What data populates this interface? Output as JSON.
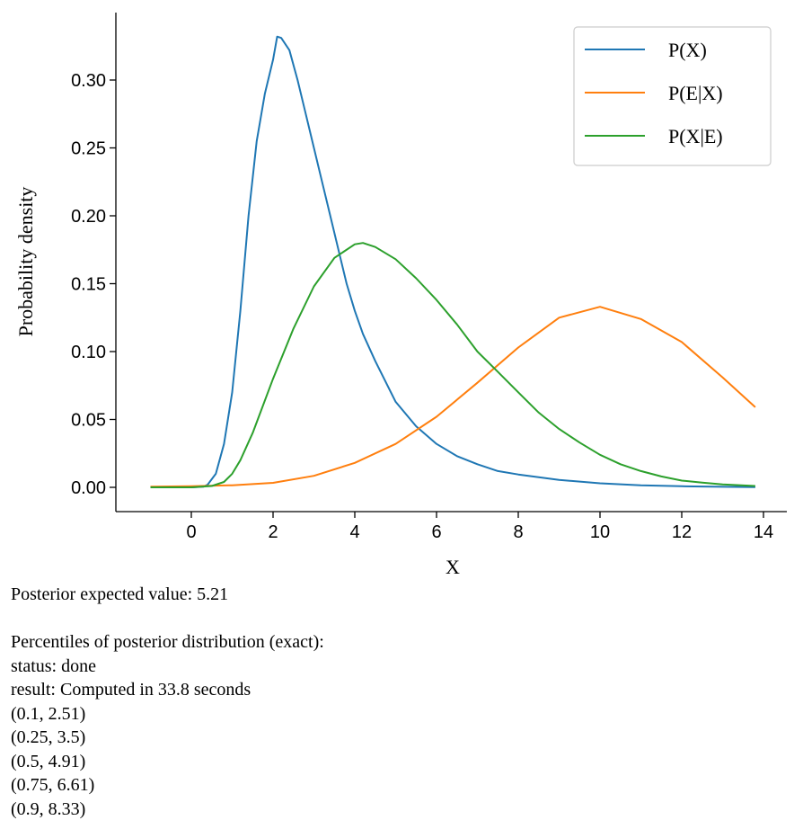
{
  "chart_data": {
    "type": "line",
    "xlabel": "X",
    "ylabel": "Probability density",
    "xlim": [
      -1,
      14
    ],
    "ylim": [
      0,
      0.33
    ],
    "x_ticks": [
      0,
      2,
      4,
      6,
      8,
      10,
      12,
      14
    ],
    "y_ticks": [
      "0.00",
      "0.05",
      "0.10",
      "0.15",
      "0.20",
      "0.25",
      "0.30"
    ],
    "legend_position": "top-right",
    "series": [
      {
        "name": "P(X)",
        "color": "#1f77b4",
        "x": [
          -1,
          0,
          0.3,
          0.4,
          0.6,
          0.8,
          1.0,
          1.2,
          1.4,
          1.6,
          1.8,
          2.0,
          2.1,
          2.2,
          2.4,
          2.6,
          2.8,
          3.0,
          3.2,
          3.4,
          3.6,
          3.8,
          4.0,
          4.2,
          4.5,
          5.0,
          5.5,
          6.0,
          6.5,
          7.0,
          7.5,
          8.0,
          9.0,
          10.0,
          11.0,
          12.0,
          13.0,
          13.8
        ],
        "y": [
          0,
          0,
          0.0005,
          0.002,
          0.01,
          0.032,
          0.07,
          0.13,
          0.2,
          0.255,
          0.29,
          0.315,
          0.332,
          0.331,
          0.322,
          0.3,
          0.275,
          0.25,
          0.225,
          0.2,
          0.175,
          0.15,
          0.13,
          0.113,
          0.093,
          0.063,
          0.045,
          0.032,
          0.023,
          0.017,
          0.012,
          0.0095,
          0.0055,
          0.003,
          0.0015,
          0.0008,
          0.0004,
          0.0002
        ]
      },
      {
        "name": "P(E|X)",
        "color": "#ff7f0e",
        "x": [
          -1,
          0,
          1,
          2,
          3,
          4,
          5,
          6,
          7,
          8,
          9,
          10,
          11,
          12,
          13,
          13.8
        ],
        "y": [
          0.0005,
          0.0008,
          0.0015,
          0.0033,
          0.0085,
          0.018,
          0.032,
          0.052,
          0.077,
          0.103,
          0.125,
          0.133,
          0.124,
          0.107,
          0.081,
          0.059
        ]
      },
      {
        "name": "P(X|E)",
        "color": "#2ca02c",
        "x": [
          -1,
          0,
          0.5,
          0.8,
          1.0,
          1.2,
          1.5,
          2.0,
          2.5,
          3.0,
          3.5,
          4.0,
          4.2,
          4.5,
          5.0,
          5.5,
          6.0,
          6.5,
          7.0,
          7.5,
          8.0,
          8.5,
          9.0,
          9.5,
          10.0,
          10.5,
          11.0,
          11.5,
          12.0,
          12.5,
          13.0,
          13.8
        ],
        "y": [
          0,
          0,
          0.001,
          0.004,
          0.01,
          0.02,
          0.04,
          0.08,
          0.117,
          0.148,
          0.169,
          0.179,
          0.18,
          0.177,
          0.168,
          0.154,
          0.138,
          0.12,
          0.1,
          0.085,
          0.07,
          0.055,
          0.043,
          0.033,
          0.024,
          0.017,
          0.012,
          0.008,
          0.005,
          0.0035,
          0.0022,
          0.001
        ]
      }
    ]
  },
  "output": {
    "expected_value": "Posterior expected value: 5.21",
    "percentiles_title": "Percentiles of posterior distribution (exact):",
    "status": "status: done",
    "result": "result: Computed in 33.8 seconds",
    "percentiles": [
      "(0.1, 2.51)",
      "(0.25, 3.5)",
      "(0.5, 4.91)",
      "(0.75, 6.61)",
      "(0.9, 8.33)"
    ]
  }
}
